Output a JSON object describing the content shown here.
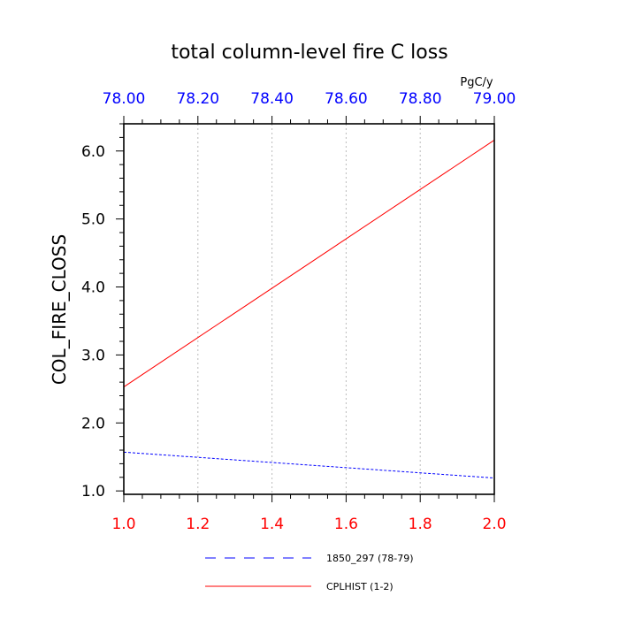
{
  "chart_data": {
    "type": "line",
    "title": "total column-level fire C loss",
    "ylabel": "COL_FIRE_CLOSS",
    "units": "PgC/y",
    "grid": "vertical-dotted",
    "legend_position": "bottom",
    "x_bottom": {
      "range": [
        1.0,
        2.0
      ],
      "ticks": [
        "1.0",
        "1.2",
        "1.4",
        "1.6",
        "1.8",
        "2.0"
      ],
      "color": "#ff0000"
    },
    "x_top": {
      "range": [
        78.0,
        79.0
      ],
      "ticks": [
        "78.00",
        "78.20",
        "78.40",
        "78.60",
        "78.80",
        "79.00"
      ],
      "color": "#0000ff"
    },
    "y": {
      "range": [
        0.95,
        6.4
      ],
      "ticks": [
        "1.0",
        "2.0",
        "3.0",
        "4.0",
        "5.0",
        "6.0"
      ]
    },
    "series": [
      {
        "name": "1850_297 (78-79)",
        "axis": "top",
        "color": "#0000ff",
        "style": "dashed",
        "x": [
          78.0,
          79.0
        ],
        "y": [
          1.57,
          1.19
        ]
      },
      {
        "name": "CPLHIST (1-2)",
        "axis": "bottom",
        "color": "#ff0000",
        "style": "solid",
        "x": [
          1.0,
          2.0
        ],
        "y": [
          2.53,
          6.16
        ]
      }
    ]
  }
}
